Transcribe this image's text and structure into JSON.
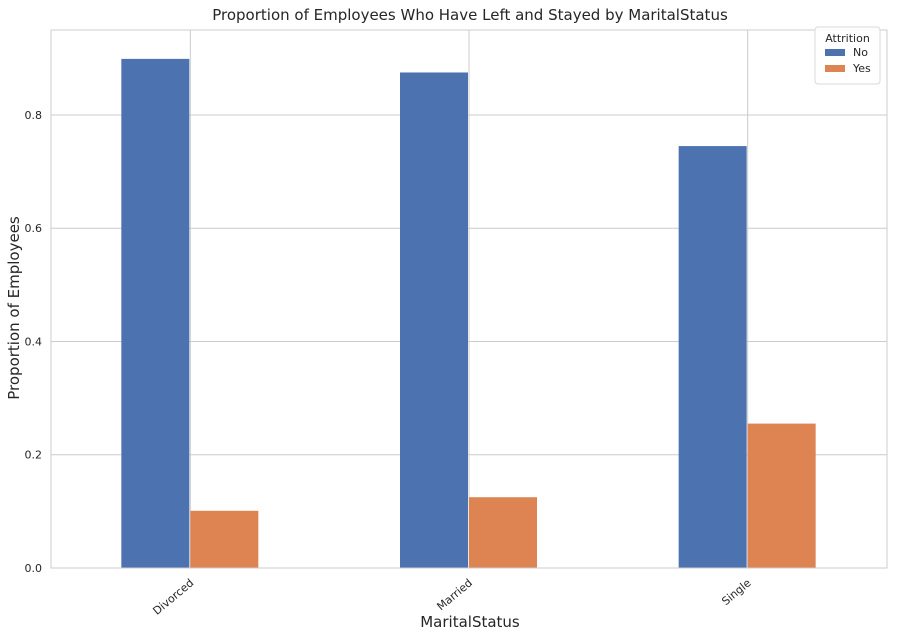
{
  "chart_data": {
    "type": "bar",
    "title": "Proportion of Employees Who Have Left and Stayed by MaritalStatus",
    "xlabel": "MaritalStatus",
    "ylabel": "Proportion of Employees",
    "categories": [
      "Divorced",
      "Married",
      "Single"
    ],
    "series": [
      {
        "name": "No",
        "values": [
          0.899,
          0.875,
          0.745
        ],
        "color": "#4c72b0"
      },
      {
        "name": "Yes",
        "values": [
          0.101,
          0.125,
          0.255
        ],
        "color": "#dd8452"
      }
    ],
    "ylim": [
      0,
      0.95
    ],
    "yticks": [
      "0.0",
      "0.2",
      "0.4",
      "0.6",
      "0.8"
    ],
    "ytick_values": [
      0,
      0.2,
      0.4,
      0.6,
      0.8
    ],
    "legend": {
      "title": "Attrition",
      "placement": "top-right"
    },
    "grid": true,
    "x_tick_rotation_deg": -40
  }
}
